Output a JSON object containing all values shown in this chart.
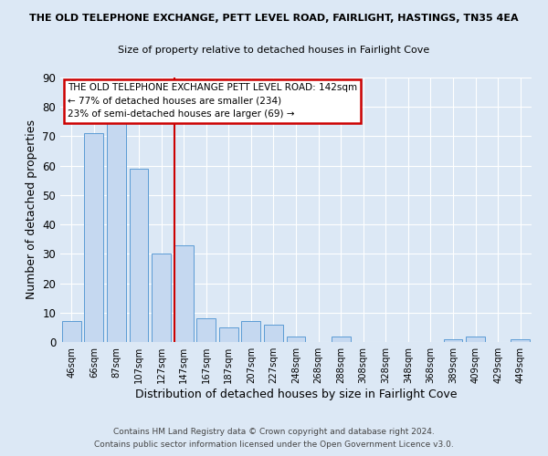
{
  "title1": "THE OLD TELEPHONE EXCHANGE, PETT LEVEL ROAD, FAIRLIGHT, HASTINGS, TN35 4EA",
  "title2": "Size of property relative to detached houses in Fairlight Cove",
  "xlabel": "Distribution of detached houses by size in Fairlight Cove",
  "ylabel": "Number of detached properties",
  "bar_labels": [
    "46sqm",
    "66sqm",
    "87sqm",
    "107sqm",
    "127sqm",
    "147sqm",
    "167sqm",
    "187sqm",
    "207sqm",
    "227sqm",
    "248sqm",
    "268sqm",
    "288sqm",
    "308sqm",
    "328sqm",
    "348sqm",
    "368sqm",
    "389sqm",
    "409sqm",
    "429sqm",
    "449sqm"
  ],
  "bar_heights": [
    7,
    71,
    75,
    59,
    30,
    33,
    8,
    5,
    7,
    6,
    2,
    0,
    2,
    0,
    0,
    0,
    0,
    1,
    2,
    0,
    1
  ],
  "bar_color": "#c5d8f0",
  "bar_edge_color": "#5b9bd5",
  "vline_color": "#cc0000",
  "annotation_title": "THE OLD TELEPHONE EXCHANGE PETT LEVEL ROAD: 142sqm",
  "annotation_line2": "← 77% of detached houses are smaller (234)",
  "annotation_line3": "23% of semi-detached houses are larger (69) →",
  "annotation_box_color": "#ffffff",
  "annotation_box_edge": "#cc0000",
  "ylim": [
    0,
    90
  ],
  "yticks": [
    0,
    10,
    20,
    30,
    40,
    50,
    60,
    70,
    80,
    90
  ],
  "background_color": "#dce8f5",
  "grid_color": "#ffffff",
  "footer1": "Contains HM Land Registry data © Crown copyright and database right 2024.",
  "footer2": "Contains public sector information licensed under the Open Government Licence v3.0."
}
